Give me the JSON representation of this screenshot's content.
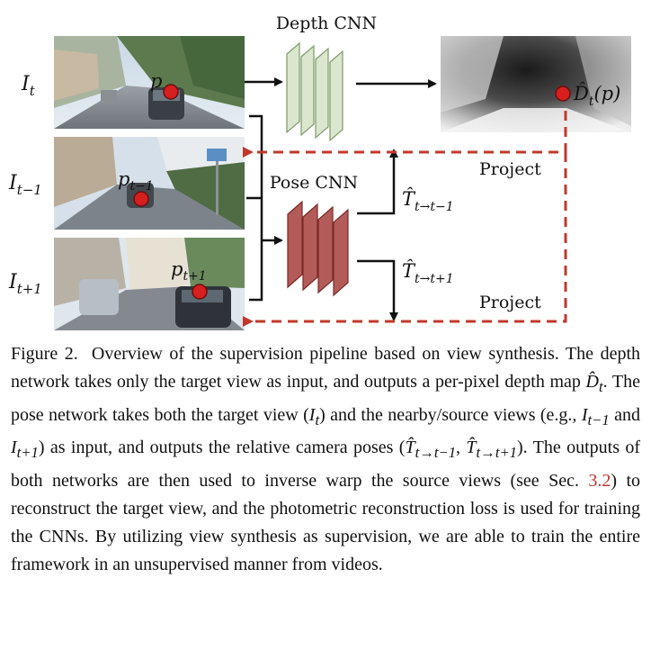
{
  "figure": {
    "depth_cnn_label": "Depth CNN",
    "pose_cnn_label": "Pose CNN",
    "project_top_label": "Project",
    "project_bottom_label": "Project",
    "input_labels": {
      "target_main": "I",
      "target_sub": "t",
      "prev_main": "I",
      "prev_sub": "t−1",
      "next_main": "I",
      "next_sub": "t+1"
    },
    "point_labels": {
      "p_main": "p",
      "p_prev_main": "p",
      "p_prev_sub": "t−1",
      "p_next_main": "p",
      "p_next_sub": "t+1"
    },
    "depth_output_label": {
      "main": "D̂",
      "sub": "t",
      "arg": "(p)"
    },
    "pose_output_labels": {
      "prev_main": "T̂",
      "prev_sub": "t→t−1",
      "next_main": "T̂",
      "next_sub": "t→t+1"
    },
    "colors": {
      "dashed_arrow": "#c0392b",
      "point_fill": "#d61f1f",
      "depth_cnn_fill": "#dbe6cf",
      "depth_cnn_stroke": "#7e9a68",
      "pose_cnn_fill": "#b35b58",
      "pose_cnn_stroke": "#7a2a28"
    }
  },
  "caption": {
    "figure_label": "Figure 2.",
    "s1": "Overview of the supervision pipeline based on view synthesis. The depth network takes only the target view as input, and outputs a per-pixel depth map ",
    "dt_main": "D̂",
    "dt_sub": "t",
    "s2": ". The pose network takes both the target view (",
    "it_main": "I",
    "it_sub": "t",
    "s3": ") and the nearby/source views (e.g., ",
    "itm1_main": "I",
    "itm1_sub": "t−1",
    "s4": " and ",
    "itp1_main": "I",
    "itp1_sub": "t+1",
    "s5": ") as input, and outputs the relative camera poses (",
    "t1_main": "T̂",
    "t1_sub": "t→t−1",
    "comma": ", ",
    "t2_main": "T̂",
    "t2_sub": "t→t+1",
    "s6": "). The outputs of both networks are then used to inverse warp the source views (see Sec. ",
    "section_ref": "3.2",
    "s7": ") to reconstruct the target view, and the photometric reconstruction loss is used for training the CNNs. By utilizing view synthesis as supervision, we are able to train the entire framework in an unsupervised manner from videos."
  }
}
